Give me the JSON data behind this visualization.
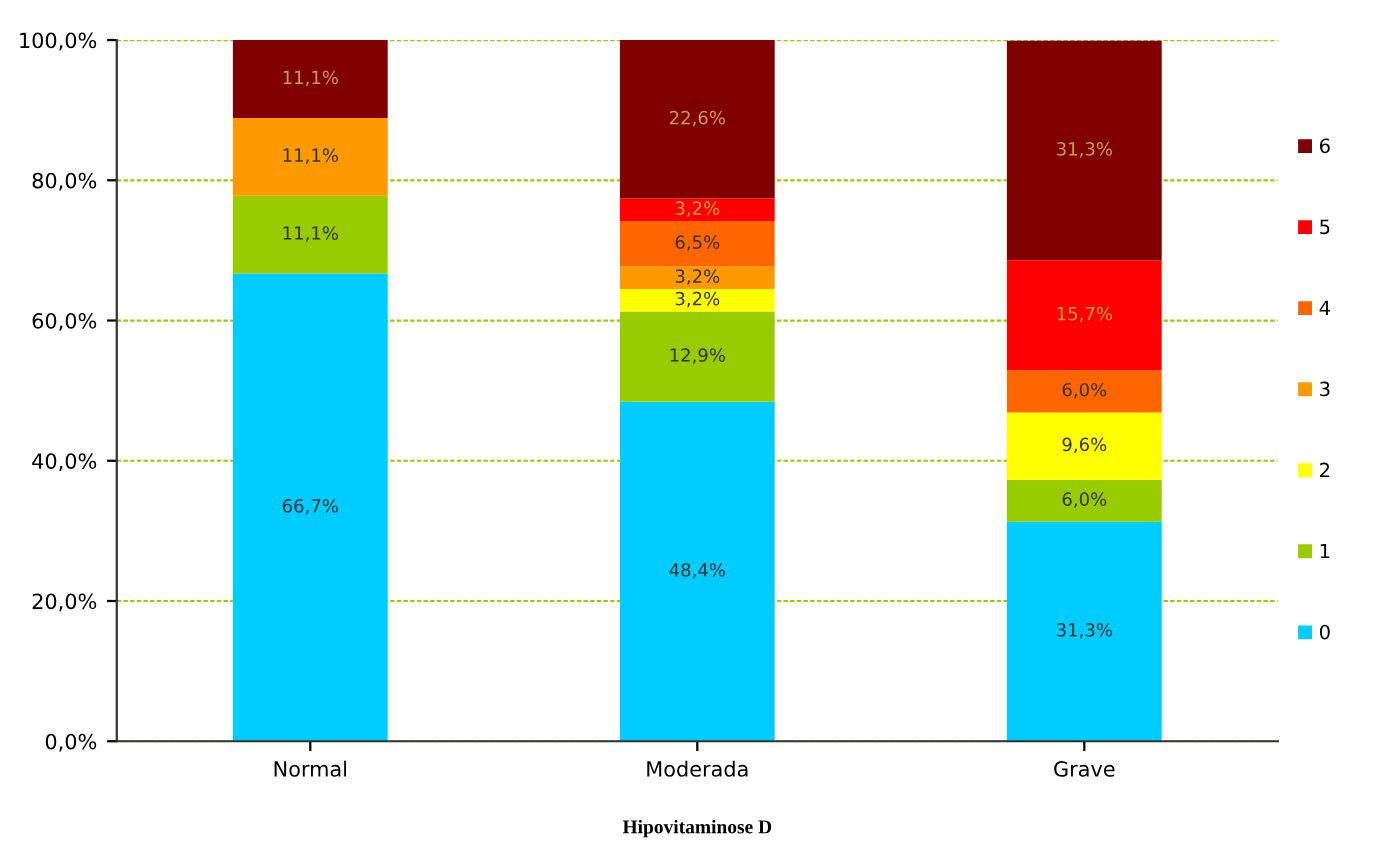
{
  "chart_data": {
    "type": "bar",
    "stacked": true,
    "xlabel": "Hipovitaminose D",
    "categories": [
      "Normal",
      "Moderada",
      "Grave"
    ],
    "ylim": [
      0,
      100
    ],
    "yticks": [
      {
        "value": 0,
        "label": "0,0%"
      },
      {
        "value": 20,
        "label": "20,0%"
      },
      {
        "value": 40,
        "label": "40,0%"
      },
      {
        "value": 60,
        "label": "60,0%"
      },
      {
        "value": 80,
        "label": "80,0%"
      },
      {
        "value": 100,
        "label": "100,0%"
      }
    ],
    "grid": "y",
    "legend": "right",
    "marker": "square",
    "series": [
      {
        "name": "0",
        "color": "#00ccff",
        "values": [
          66.7,
          48.4,
          31.3
        ],
        "value_labels": [
          "66,7%",
          "48,4%",
          "31,3%"
        ]
      },
      {
        "name": "1",
        "color": "#99cc00",
        "values": [
          11.1,
          12.9,
          6.0
        ],
        "value_labels": [
          "11,1%",
          "12,9%",
          "6,0%"
        ]
      },
      {
        "name": "2",
        "color": "#ffff00",
        "values": [
          0,
          3.2,
          9.6
        ],
        "value_labels": [
          null,
          "3,2%",
          "9,6%"
        ]
      },
      {
        "name": "3",
        "color": "#ff9900",
        "values": [
          11.1,
          3.2,
          0
        ],
        "value_labels": [
          "11,1%",
          "3,2%",
          null
        ]
      },
      {
        "name": "4",
        "color": "#ff6600",
        "values": [
          0,
          6.5,
          6.0
        ],
        "value_labels": [
          null,
          "6,5%",
          "6,0%"
        ]
      },
      {
        "name": "5",
        "color": "#ff0000",
        "values": [
          0,
          3.2,
          15.7
        ],
        "value_labels": [
          null,
          "3,2%",
          "15,7%"
        ]
      },
      {
        "name": "6",
        "color": "#800000",
        "values": [
          11.1,
          22.6,
          31.3
        ],
        "value_labels": [
          "11,1%",
          "22,6%",
          "31,3%"
        ]
      }
    ]
  }
}
